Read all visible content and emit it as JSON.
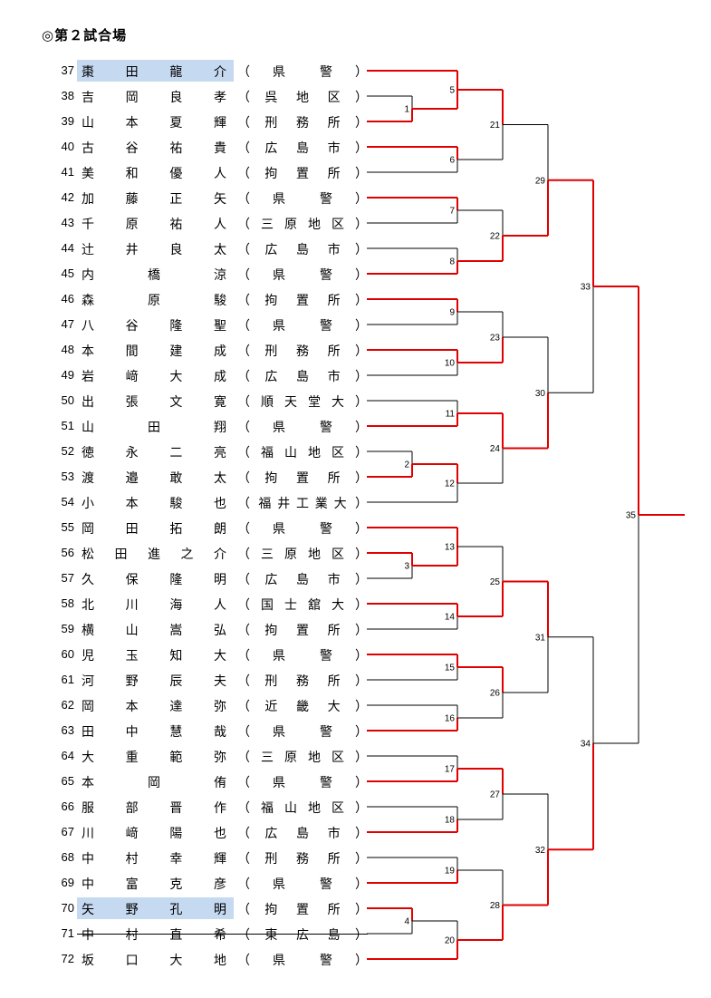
{
  "title": "◎第２試合場",
  "entries": [
    {
      "no": "37",
      "name": "棗田龍介",
      "aff": "県警",
      "highlight": true,
      "strike": false
    },
    {
      "no": "38",
      "name": "吉岡良孝",
      "aff": "呉地区",
      "highlight": false,
      "strike": false
    },
    {
      "no": "39",
      "name": "山本夏輝",
      "aff": "刑務所",
      "highlight": false,
      "strike": false
    },
    {
      "no": "40",
      "name": "古谷祐貴",
      "aff": "広島市",
      "highlight": false,
      "strike": false
    },
    {
      "no": "41",
      "name": "美和優人",
      "aff": "拘置所",
      "highlight": false,
      "strike": false
    },
    {
      "no": "42",
      "name": "加藤正矢",
      "aff": "県警",
      "highlight": false,
      "strike": false
    },
    {
      "no": "43",
      "name": "千原祐人",
      "aff": "三原地区",
      "highlight": false,
      "strike": false
    },
    {
      "no": "44",
      "name": "辻井良太",
      "aff": "広島市",
      "highlight": false,
      "strike": false
    },
    {
      "no": "45",
      "name": "内橋涼",
      "aff": "県警",
      "highlight": false,
      "strike": false
    },
    {
      "no": "46",
      "name": "森原駿",
      "aff": "拘置所",
      "highlight": false,
      "strike": false
    },
    {
      "no": "47",
      "name": "八谷隆聖",
      "aff": "県警",
      "highlight": false,
      "strike": false
    },
    {
      "no": "48",
      "name": "本間建成",
      "aff": "刑務所",
      "highlight": false,
      "strike": false
    },
    {
      "no": "49",
      "name": "岩﨑大成",
      "aff": "広島市",
      "highlight": false,
      "strike": false
    },
    {
      "no": "50",
      "name": "出張文寛",
      "aff": "順天堂大",
      "highlight": false,
      "strike": false
    },
    {
      "no": "51",
      "name": "山田翔",
      "aff": "県警",
      "highlight": false,
      "strike": false
    },
    {
      "no": "52",
      "name": "徳永二亮",
      "aff": "福山地区",
      "highlight": false,
      "strike": false
    },
    {
      "no": "53",
      "name": "渡邉敢太",
      "aff": "拘置所",
      "highlight": false,
      "strike": false
    },
    {
      "no": "54",
      "name": "小本駿也",
      "aff": "福井工業大",
      "highlight": false,
      "strike": false
    },
    {
      "no": "55",
      "name": "岡田拓朗",
      "aff": "県警",
      "highlight": false,
      "strike": false
    },
    {
      "no": "56",
      "name": "松田進之介",
      "aff": "三原地区",
      "highlight": false,
      "strike": false
    },
    {
      "no": "57",
      "name": "久保隆明",
      "aff": "広島市",
      "highlight": false,
      "strike": false
    },
    {
      "no": "58",
      "name": "北川海人",
      "aff": "国士舘大",
      "highlight": false,
      "strike": false
    },
    {
      "no": "59",
      "name": "横山嵩弘",
      "aff": "拘置所",
      "highlight": false,
      "strike": false
    },
    {
      "no": "60",
      "name": "児玉知大",
      "aff": "県警",
      "highlight": false,
      "strike": false
    },
    {
      "no": "61",
      "name": "河野辰夫",
      "aff": "刑務所",
      "highlight": false,
      "strike": false
    },
    {
      "no": "62",
      "name": "岡本達弥",
      "aff": "近畿大",
      "highlight": false,
      "strike": false
    },
    {
      "no": "63",
      "name": "田中慧哉",
      "aff": "県警",
      "highlight": false,
      "strike": false
    },
    {
      "no": "64",
      "name": "大重範弥",
      "aff": "三原地区",
      "highlight": false,
      "strike": false
    },
    {
      "no": "65",
      "name": "本岡侑",
      "aff": "県警",
      "highlight": false,
      "strike": false
    },
    {
      "no": "66",
      "name": "服部晋作",
      "aff": "福山地区",
      "highlight": false,
      "strike": false
    },
    {
      "no": "67",
      "name": "川﨑陽也",
      "aff": "広島市",
      "highlight": false,
      "strike": false
    },
    {
      "no": "68",
      "name": "中村幸輝",
      "aff": "刑務所",
      "highlight": false,
      "strike": false
    },
    {
      "no": "69",
      "name": "中富克彦",
      "aff": "県警",
      "highlight": false,
      "strike": false
    },
    {
      "no": "70",
      "name": "矢野孔明",
      "aff": "拘置所",
      "highlight": true,
      "strike": false
    },
    {
      "no": "71",
      "name": "中村直希",
      "aff": "東広島",
      "highlight": false,
      "strike": true
    },
    {
      "no": "72",
      "name": "坂口大地",
      "aff": "県警",
      "highlight": false,
      "strike": false
    }
  ],
  "match_numbers": [
    "1",
    "2",
    "3",
    "4",
    "5",
    "6",
    "7",
    "8",
    "9",
    "10",
    "11",
    "12",
    "13",
    "14",
    "15",
    "16",
    "17",
    "18",
    "19",
    "20",
    "21",
    "22",
    "23",
    "24",
    "25",
    "26",
    "27",
    "28",
    "29",
    "30",
    "31",
    "32",
    "33",
    "34",
    "35"
  ],
  "colors": {
    "winner": "#e00000",
    "line": "#000000",
    "highlight": "#c5d9f1"
  }
}
